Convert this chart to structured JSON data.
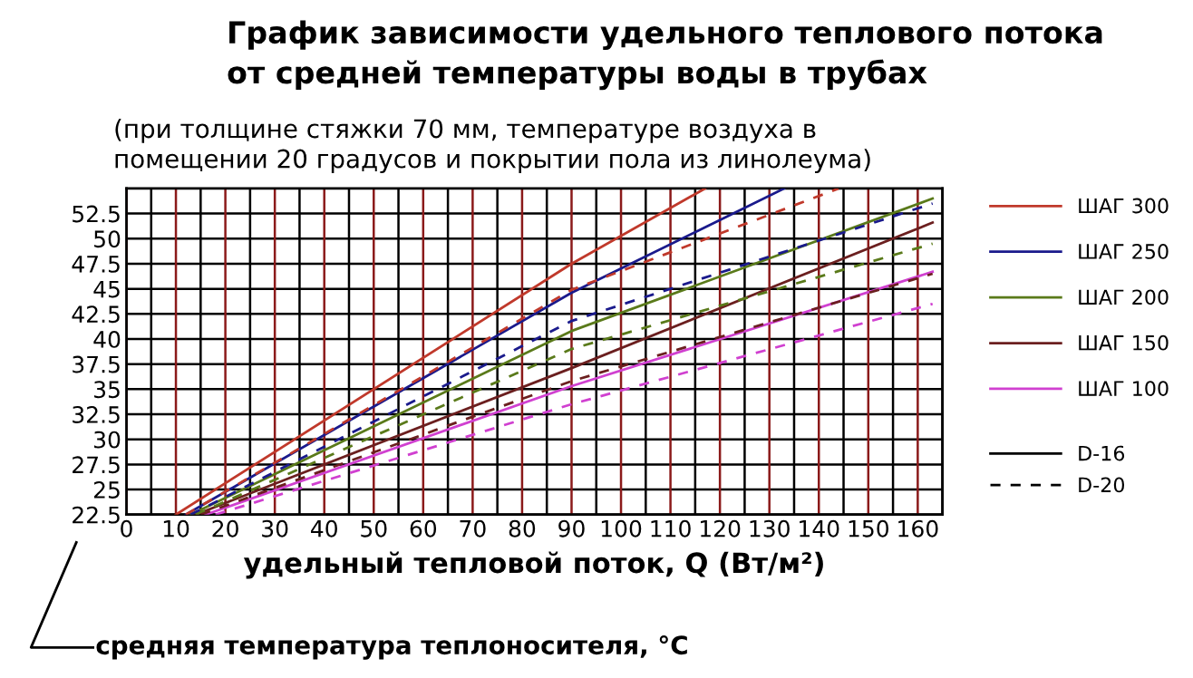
{
  "chart_data": {
    "type": "line",
    "title": "График зависимости удельного теплового потока\nот средней температуры воды в трубах",
    "subtitle": "(при толщине стяжки 70 мм, температуре воздуха в\nпомещении 20 градусов и покрытии пола из линолеума)",
    "xlabel": "удельный тепловой поток, Q (Вт/м²)",
    "ylabel": "средняя температура теплоносителя, °C",
    "annotations": [
      "D-16",
      "D-20"
    ],
    "series": [
      {
        "name": "ШАГ 300",
        "color": "#c0392b",
        "line_style": "solid",
        "x": [
          10,
          90,
          117
        ],
        "values": [
          22.5,
          47.5,
          55
        ]
      },
      {
        "name": "ШАГ 250",
        "color": "#1a1a8c",
        "line_style": "solid",
        "x": [
          12,
          90,
          133
        ],
        "values": [
          22.5,
          44.6,
          55
        ]
      },
      {
        "name": "ШАГ 200",
        "color": "#5a7a1a",
        "line_style": "solid",
        "x": [
          13,
          90,
          163
        ],
        "values": [
          22.5,
          40.8,
          54
        ]
      },
      {
        "name": "ШАГ 150",
        "color": "#6b1f1f",
        "line_style": "solid",
        "x": [
          14,
          90,
          163
        ],
        "values": [
          22.5,
          37.1,
          51.6
        ]
      },
      {
        "name": "ШАГ 100",
        "color": "#d040d0",
        "line_style": "solid",
        "x": [
          16,
          90,
          163
        ],
        "values": [
          22.5,
          35.3,
          46.7
        ]
      },
      {
        "color": "#c0392b",
        "line_style": "dashed",
        "x": [
          12,
          90,
          144
        ],
        "values": [
          22.5,
          44.9,
          55
        ]
      },
      {
        "color": "#1a1a8c",
        "line_style": "dashed",
        "x": [
          13,
          90,
          163
        ],
        "values": [
          22.5,
          41.8,
          53.5
        ]
      },
      {
        "color": "#5a7a1a",
        "line_style": "dashed",
        "x": [
          14,
          90,
          163
        ],
        "values": [
          22.5,
          39,
          49.5
        ]
      },
      {
        "color": "#6b1f1f",
        "line_style": "dashed",
        "x": [
          15,
          90,
          163
        ],
        "values": [
          22.5,
          35.8,
          46.5
        ]
      },
      {
        "color": "#d040d0",
        "line_style": "dashed",
        "x": [
          18,
          90,
          163
        ],
        "values": [
          22.5,
          33.5,
          43.5
        ]
      }
    ],
    "xlim": [
      0,
      165
    ],
    "xticks": [
      0,
      10,
      20,
      30,
      40,
      50,
      60,
      70,
      80,
      90,
      100,
      110,
      120,
      130,
      140,
      150,
      160
    ],
    "ylim": [
      22.5,
      55
    ],
    "yticks": [
      22.5,
      25,
      27.5,
      30,
      32.5,
      35,
      37.5,
      40,
      42.5,
      45,
      47.5,
      50,
      52.5
    ],
    "grid": true,
    "legend": "right",
    "marker": "none"
  }
}
